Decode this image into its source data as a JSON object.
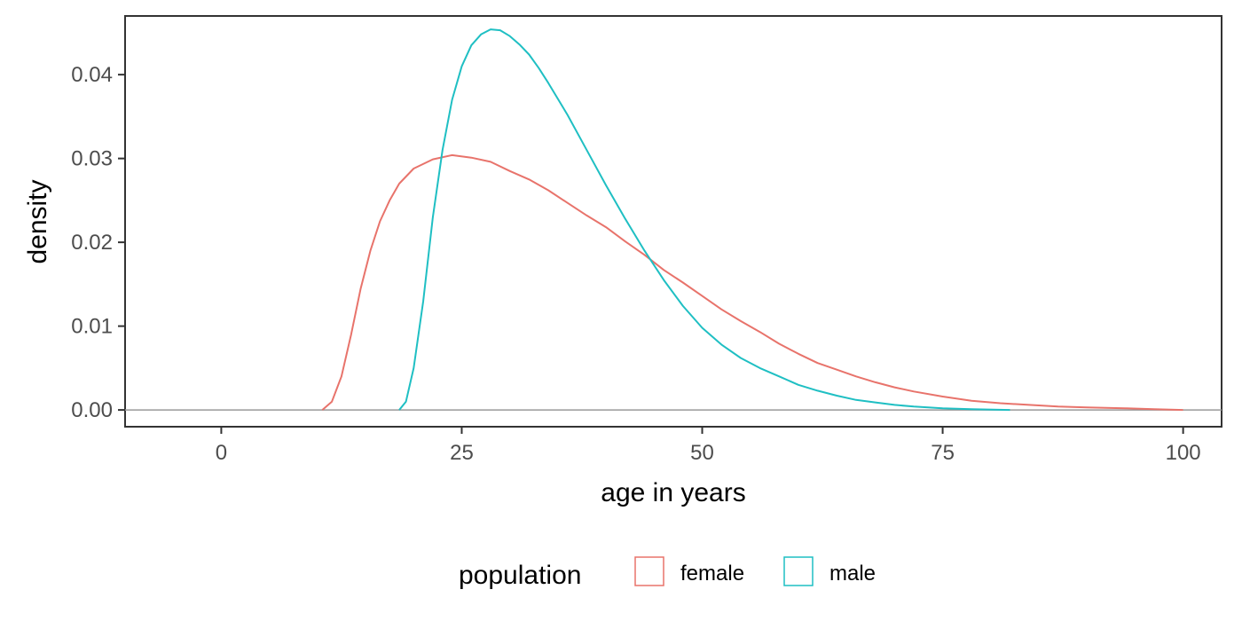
{
  "chart_data": {
    "type": "line",
    "title": "",
    "xlabel": "age in years",
    "ylabel": "density",
    "xlim": [
      -10,
      104
    ],
    "ylim": [
      -0.002,
      0.047
    ],
    "xticks": [
      0,
      25,
      50,
      75,
      100
    ],
    "xtick_labels": [
      "0",
      "25",
      "50",
      "75",
      "100"
    ],
    "yticks": [
      0,
      0.01,
      0.02,
      0.03,
      0.04
    ],
    "ytick_labels": [
      "0.00",
      "0.01",
      "0.02",
      "0.03",
      "0.04"
    ],
    "grid": false,
    "baseline": 0,
    "legend": {
      "title": "population",
      "position": "bottom"
    },
    "series": [
      {
        "name": "female",
        "color": "#e8736b",
        "points": [
          [
            10.5,
            0.0
          ],
          [
            11.5,
            0.001
          ],
          [
            12.5,
            0.004
          ],
          [
            13.5,
            0.009
          ],
          [
            14.5,
            0.0145
          ],
          [
            15.5,
            0.019
          ],
          [
            16.5,
            0.0225
          ],
          [
            17.5,
            0.025
          ],
          [
            18.5,
            0.027
          ],
          [
            20,
            0.0288
          ],
          [
            22,
            0.0299
          ],
          [
            24,
            0.0304
          ],
          [
            26,
            0.0301
          ],
          [
            28,
            0.0296
          ],
          [
            30,
            0.0285
          ],
          [
            32,
            0.0275
          ],
          [
            34,
            0.0262
          ],
          [
            36,
            0.0247
          ],
          [
            38,
            0.0232
          ],
          [
            40,
            0.0218
          ],
          [
            42,
            0.0201
          ],
          [
            44,
            0.0185
          ],
          [
            46,
            0.0167
          ],
          [
            48,
            0.0152
          ],
          [
            50,
            0.0136
          ],
          [
            52,
            0.012
          ],
          [
            54,
            0.0106
          ],
          [
            56,
            0.0093
          ],
          [
            58,
            0.0079
          ],
          [
            60,
            0.0067
          ],
          [
            62,
            0.0056
          ],
          [
            64,
            0.0048
          ],
          [
            66,
            0.004
          ],
          [
            68,
            0.0033
          ],
          [
            70,
            0.0027
          ],
          [
            72,
            0.0022
          ],
          [
            75,
            0.0016
          ],
          [
            78,
            0.0011
          ],
          [
            81,
            0.0008
          ],
          [
            84,
            0.0006
          ],
          [
            87,
            0.0004
          ],
          [
            90,
            0.0003
          ],
          [
            94,
            0.0002
          ],
          [
            97,
            0.0001
          ],
          [
            100,
            0.0
          ]
        ]
      },
      {
        "name": "male",
        "color": "#1fbfc3",
        "points": [
          [
            18.5,
            0.0
          ],
          [
            19.2,
            0.001
          ],
          [
            20,
            0.005
          ],
          [
            21,
            0.013
          ],
          [
            22,
            0.023
          ],
          [
            23,
            0.031
          ],
          [
            24,
            0.037
          ],
          [
            25,
            0.041
          ],
          [
            26,
            0.0435
          ],
          [
            27,
            0.0448
          ],
          [
            28,
            0.0454
          ],
          [
            29,
            0.0453
          ],
          [
            30,
            0.0446
          ],
          [
            31,
            0.0436
          ],
          [
            32,
            0.0424
          ],
          [
            33,
            0.0408
          ],
          [
            34,
            0.039
          ],
          [
            36,
            0.0352
          ],
          [
            38,
            0.031
          ],
          [
            40,
            0.0268
          ],
          [
            42,
            0.0228
          ],
          [
            44,
            0.019
          ],
          [
            46,
            0.0155
          ],
          [
            48,
            0.0124
          ],
          [
            50,
            0.0098
          ],
          [
            52,
            0.0078
          ],
          [
            54,
            0.0062
          ],
          [
            56,
            0.005
          ],
          [
            58,
            0.004
          ],
          [
            60,
            0.003
          ],
          [
            62,
            0.0023
          ],
          [
            64,
            0.0017
          ],
          [
            66,
            0.0012
          ],
          [
            68,
            0.0009
          ],
          [
            70,
            0.0006
          ],
          [
            72,
            0.0004
          ],
          [
            75,
            0.0002
          ],
          [
            78,
            0.0001
          ],
          [
            82,
            0.0
          ]
        ]
      }
    ]
  }
}
